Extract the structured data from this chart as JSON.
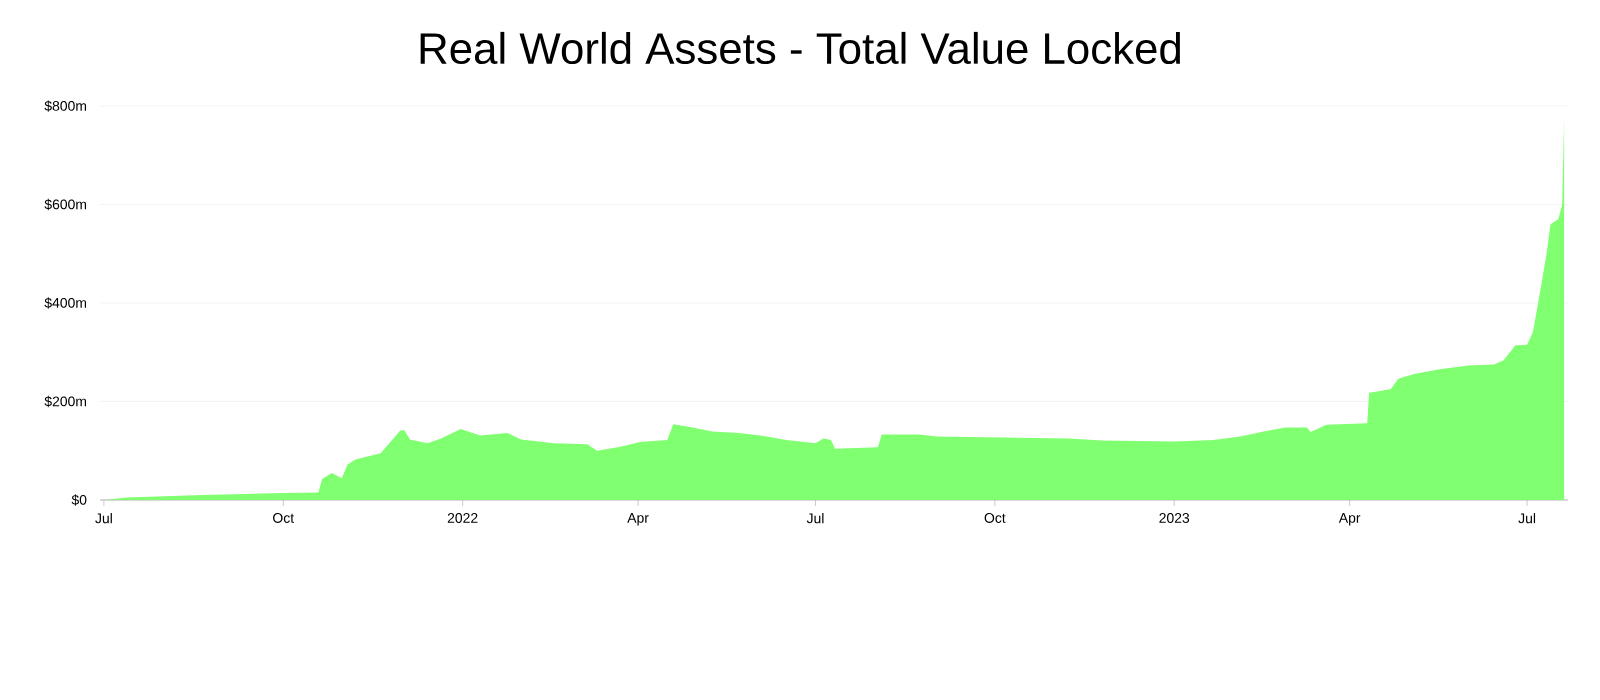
{
  "chart_data": {
    "type": "area",
    "title": "Real World Assets - Total Value Locked",
    "x": [
      "2021-07-01",
      "2021-07-13",
      "2021-08-20",
      "2021-09-30",
      "2021-10-19",
      "2021-10-21",
      "2021-10-26",
      "2021-10-31",
      "2021-11-03",
      "2021-11-07",
      "2021-11-20",
      "2021-11-30",
      "2021-12-02",
      "2021-12-05",
      "2021-12-14",
      "2021-12-21",
      "2021-12-31",
      "2022-01-10",
      "2022-01-24",
      "2022-01-31",
      "2022-02-17",
      "2022-03-06",
      "2022-03-11",
      "2022-03-23",
      "2022-04-02",
      "2022-04-16",
      "2022-04-19",
      "2022-04-29",
      "2022-05-09",
      "2022-05-23",
      "2022-06-06",
      "2022-06-16",
      "2022-07-01",
      "2022-07-05",
      "2022-07-09",
      "2022-07-11",
      "2022-08-02",
      "2022-08-04",
      "2022-08-23",
      "2022-09-01",
      "2022-10-05",
      "2022-11-08",
      "2022-11-25",
      "2023-01-01",
      "2023-01-21",
      "2023-02-04",
      "2023-02-17",
      "2023-02-27",
      "2023-03-10",
      "2023-03-12",
      "2023-03-20",
      "2023-04-10",
      "2023-04-11",
      "2023-04-22",
      "2023-04-26",
      "2023-05-04",
      "2023-05-18",
      "2023-06-01",
      "2023-06-14",
      "2023-06-19",
      "2023-06-25",
      "2023-07-01",
      "2023-07-04",
      "2023-07-08",
      "2023-07-11",
      "2023-07-13",
      "2023-07-17",
      "2023-07-19",
      "2023-07-20"
    ],
    "values": [
      0,
      5,
      10,
      14,
      15,
      43,
      55,
      44,
      72,
      82,
      95,
      141,
      142,
      123,
      115,
      125,
      144,
      131,
      136,
      123,
      115,
      113,
      100,
      108,
      118,
      122,
      154,
      147,
      139,
      136,
      129,
      122,
      115,
      125,
      122,
      104,
      107,
      133,
      133,
      129,
      127,
      125,
      121,
      119,
      122,
      129,
      140,
      147,
      147,
      138,
      153,
      156,
      218,
      225,
      246,
      256,
      266,
      273,
      275,
      284,
      314,
      315,
      341,
      430,
      500,
      560,
      570,
      600,
      775
    ],
    "color": "#80ff70",
    "xlim": [
      "2021-06-29",
      "2023-07-22"
    ],
    "xticks": [
      {
        "value": "2021-07-01",
        "label": "Jul"
      },
      {
        "value": "2021-10-01",
        "label": "Oct"
      },
      {
        "value": "2022-01-01",
        "label": "2022"
      },
      {
        "value": "2022-04-01",
        "label": "Apr"
      },
      {
        "value": "2022-07-01",
        "label": "Jul"
      },
      {
        "value": "2022-10-01",
        "label": "Oct"
      },
      {
        "value": "2023-01-01",
        "label": "2023"
      },
      {
        "value": "2023-04-01",
        "label": "Apr"
      },
      {
        "value": "2023-07-01",
        "label": "Jul"
      }
    ],
    "ylim": [
      0,
      800
    ],
    "yticks": [
      {
        "value": 0,
        "label": "$0"
      },
      {
        "value": 200,
        "label": "$200m"
      },
      {
        "value": 400,
        "label": "$400m"
      },
      {
        "value": 600,
        "label": "$600m"
      },
      {
        "value": 800,
        "label": "$800m"
      }
    ],
    "grid": "y"
  }
}
